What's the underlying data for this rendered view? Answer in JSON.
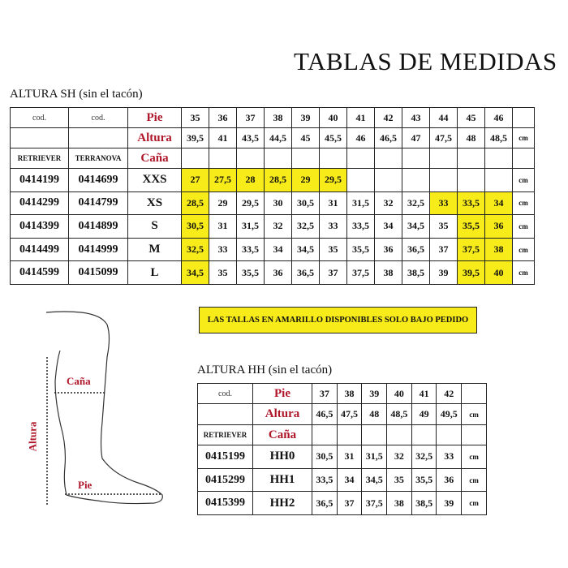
{
  "title": "TABLAS DE MEDIDAS",
  "notice": "LAS TALLAS EN AMARILLO DISPONIBLES SOLO BAJO PEDIDO",
  "colors": {
    "highlight": "#f7ec1a",
    "label_red": "#b0162a"
  },
  "diagram": {
    "cana": "Caña",
    "pie": "Pie",
    "altura": "Altura"
  },
  "table_sh": {
    "subtitle": "ALTURA SH (sin el tacón)",
    "code_header": [
      "cod.",
      "cod."
    ],
    "brands": [
      "RETRIEVER",
      "TERRANOVA"
    ],
    "row_labels": {
      "pie": "Pie",
      "altura": "Altura",
      "cana": "Caña"
    },
    "pie": [
      "35",
      "36",
      "37",
      "38",
      "39",
      "40",
      "41",
      "42",
      "43",
      "44",
      "45",
      "46"
    ],
    "altura": [
      "39,5",
      "41",
      "43,5",
      "44,5",
      "45",
      "45,5",
      "46",
      "46,5",
      "47",
      "47,5",
      "48",
      "48,5"
    ],
    "unit": "cm",
    "rows": [
      {
        "code1": "0414199",
        "code2": "0414699",
        "size": "XXS",
        "values": [
          "27",
          "27,5",
          "28",
          "28,5",
          "29",
          "29,5",
          "",
          "",
          "",
          "",
          "",
          ""
        ],
        "highlight": [
          0,
          1,
          2,
          3,
          4,
          5
        ]
      },
      {
        "code1": "0414299",
        "code2": "0414799",
        "size": "XS",
        "values": [
          "28,5",
          "29",
          "29,5",
          "30",
          "30,5",
          "31",
          "31,5",
          "32",
          "32,5",
          "33",
          "33,5",
          "34"
        ],
        "highlight": [
          0,
          9,
          10,
          11
        ]
      },
      {
        "code1": "0414399",
        "code2": "0414899",
        "size": "S",
        "values": [
          "30,5",
          "31",
          "31,5",
          "32",
          "32,5",
          "33",
          "33,5",
          "34",
          "34,5",
          "35",
          "35,5",
          "36"
        ],
        "highlight": [
          0,
          10,
          11
        ]
      },
      {
        "code1": "0414499",
        "code2": "0414999",
        "size": "M",
        "values": [
          "32,5",
          "33",
          "33,5",
          "34",
          "34,5",
          "35",
          "35,5",
          "36",
          "36,5",
          "37",
          "37,5",
          "38"
        ],
        "highlight": [
          0,
          10,
          11
        ]
      },
      {
        "code1": "0414599",
        "code2": "0415099",
        "size": "L",
        "values": [
          "34,5",
          "35",
          "35,5",
          "36",
          "36,5",
          "37",
          "37,5",
          "38",
          "38,5",
          "39",
          "39,5",
          "40"
        ],
        "highlight": [
          0,
          10,
          11
        ]
      }
    ]
  },
  "table_hh": {
    "subtitle": "ALTURA HH (sin el tacón)",
    "code_header": "cod.",
    "brand": "RETRIEVER",
    "row_labels": {
      "pie": "Pie",
      "altura": "Altura",
      "cana": "Caña"
    },
    "pie": [
      "37",
      "38",
      "39",
      "40",
      "41",
      "42"
    ],
    "altura": [
      "46,5",
      "47,5",
      "48",
      "48,5",
      "49",
      "49,5"
    ],
    "unit": "cm",
    "rows": [
      {
        "code": "0415199",
        "size": "HH0",
        "values": [
          "30,5",
          "31",
          "31,5",
          "32",
          "32,5",
          "33"
        ]
      },
      {
        "code": "0415299",
        "size": "HH1",
        "values": [
          "33,5",
          "34",
          "34,5",
          "35",
          "35,5",
          "36"
        ]
      },
      {
        "code": "0415399",
        "size": "HH2",
        "values": [
          "36,5",
          "37",
          "37,5",
          "38",
          "38,5",
          "39"
        ]
      }
    ]
  }
}
